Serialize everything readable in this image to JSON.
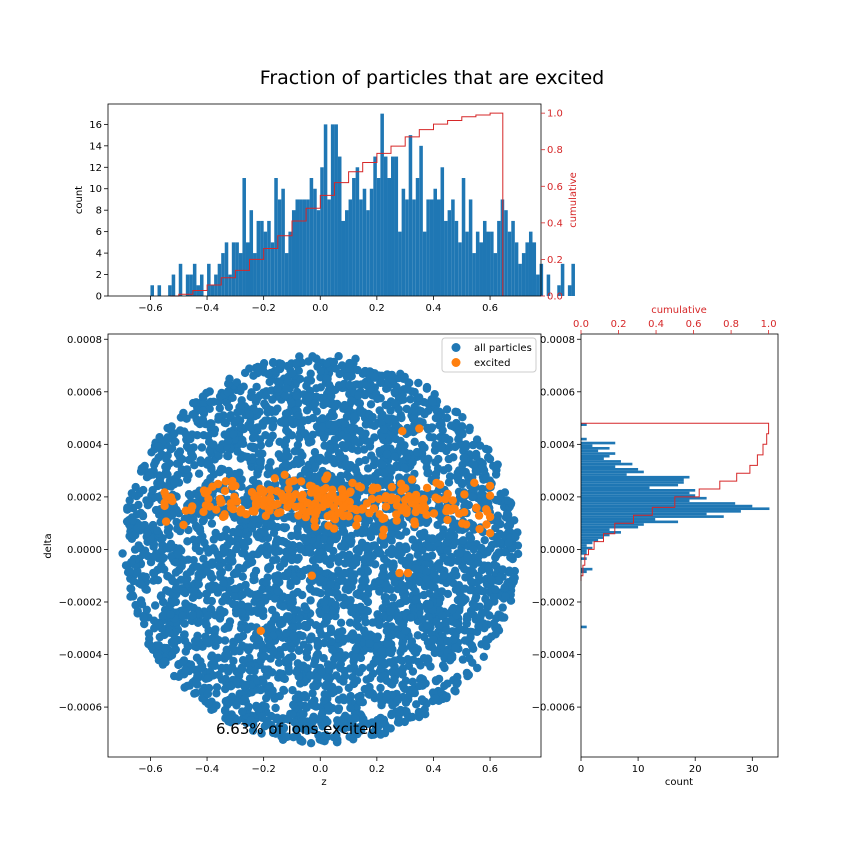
{
  "title": "Fraction of particles that are excited",
  "annotation": "6.63% of ions excited",
  "colors": {
    "all": "#1f77b4",
    "excited": "#ff7f0e",
    "cumulative": "#d62728",
    "axis": "#000000",
    "legend_border": "#cccccc"
  },
  "chart_data": [
    {
      "id": "top-histogram",
      "type": "bar",
      "xlabel": "",
      "ylabel": "count",
      "ylabel_right": "cumulative",
      "xlim": [
        -0.75,
        0.78
      ],
      "ylim": [
        0,
        17.9
      ],
      "ylim_right": [
        0,
        1.05
      ],
      "xticks": [
        -0.6,
        -0.4,
        -0.2,
        0.0,
        0.2,
        0.4,
        0.6
      ],
      "xtick_labels": [
        "−0.6",
        "−0.4",
        "−0.2",
        "0.0",
        "0.2",
        "0.4",
        "0.6"
      ],
      "yticks": [
        0,
        2,
        4,
        6,
        8,
        10,
        12,
        14,
        16
      ],
      "yticks_right": [
        0.0,
        0.2,
        0.4,
        0.6,
        0.8,
        1.0
      ],
      "ytick_labels_right": [
        "0.0",
        "0.2",
        "0.4",
        "0.6",
        "0.8",
        "1.0"
      ],
      "bin_start": -0.6,
      "bin_width": 0.0125,
      "counts": [
        1,
        0,
        1,
        0,
        0,
        1,
        2,
        0,
        3,
        0,
        2,
        2,
        3,
        1,
        2,
        0,
        3,
        1,
        2,
        3,
        4,
        5,
        2,
        5,
        5,
        4,
        11,
        5,
        8,
        4,
        7,
        7,
        6,
        7,
        5,
        11,
        9,
        10,
        4,
        6,
        8,
        9,
        9,
        9,
        9,
        11,
        10,
        8,
        12,
        16,
        9,
        16,
        16,
        13,
        7,
        8,
        9,
        11,
        12,
        9,
        10,
        8,
        10,
        13,
        11,
        17,
        13,
        11,
        13,
        13,
        6,
        10,
        9,
        15,
        9,
        11,
        14,
        6,
        9,
        9,
        10,
        9,
        12,
        7,
        8,
        9,
        7,
        5,
        11,
        6,
        9,
        4,
        6,
        5,
        7,
        6,
        6,
        4,
        7,
        9,
        8,
        6,
        7,
        5,
        3,
        4,
        5,
        6,
        5,
        2,
        3,
        0,
        2,
        0,
        0,
        1,
        3,
        0,
        1,
        3,
        0,
        0,
        0,
        0
      ],
      "cumulative": {
        "x": [
          -0.53,
          -0.5,
          -0.45,
          -0.4,
          -0.35,
          -0.3,
          -0.25,
          -0.2,
          -0.15,
          -0.1,
          -0.05,
          0.0,
          0.05,
          0.1,
          0.15,
          0.2,
          0.25,
          0.3,
          0.35,
          0.4,
          0.45,
          0.5,
          0.55,
          0.6,
          0.645
        ],
        "y": [
          0.0,
          0.01,
          0.03,
          0.06,
          0.1,
          0.14,
          0.2,
          0.26,
          0.33,
          0.41,
          0.48,
          0.55,
          0.62,
          0.68,
          0.73,
          0.78,
          0.82,
          0.87,
          0.91,
          0.94,
          0.96,
          0.98,
          0.99,
          1.0,
          1.0
        ]
      }
    },
    {
      "id": "main-scatter",
      "type": "scatter",
      "xlabel": "z",
      "ylabel": "delta",
      "xlim": [
        -0.75,
        0.78
      ],
      "ylim": [
        -0.00079,
        0.00082
      ],
      "xticks": [
        -0.6,
        -0.4,
        -0.2,
        0.0,
        0.2,
        0.4,
        0.6
      ],
      "xtick_labels": [
        "−0.6",
        "−0.4",
        "−0.2",
        "0.0",
        "0.2",
        "0.4",
        "0.6"
      ],
      "yticks": [
        -0.0006,
        -0.0004,
        -0.0002,
        0.0,
        0.0002,
        0.0004,
        0.0006,
        0.0008
      ],
      "ytick_labels": [
        "−0.0006",
        "−0.0004",
        "−0.0002",
        "0.0000",
        "0.0002",
        "0.0004",
        "0.0006",
        "0.0008"
      ],
      "legend_position": "upper right",
      "series": [
        {
          "name": "all particles",
          "count": 3800,
          "z_radius": 0.7,
          "delta_radius": 0.00074
        },
        {
          "name": "excited",
          "count": 252,
          "z_range": [
            -0.55,
            0.6
          ],
          "delta_range": [
            -1e-05,
            0.0004
          ]
        }
      ]
    },
    {
      "id": "right-histogram",
      "type": "bar",
      "orientation": "horizontal",
      "xlabel": "count",
      "xlabel_top": "cumulative",
      "xlim": [
        0,
        34.5
      ],
      "xlim_top": [
        0,
        1.05
      ],
      "ylim": [
        -0.00079,
        0.00082
      ],
      "xticks": [
        0,
        10,
        20,
        30
      ],
      "xticks_top": [
        0.0,
        0.2,
        0.4,
        0.6,
        0.8,
        1.0
      ],
      "xtick_labels_top": [
        "0.0",
        "0.2",
        "0.4",
        "0.6",
        "0.8",
        "1.0"
      ],
      "yticks": [
        -0.0006,
        -0.0004,
        -0.0002,
        0.0,
        0.0002,
        0.0004,
        0.0006,
        0.0008
      ],
      "ytick_labels": [
        "−0.0006",
        "−0.0004",
        "−0.0002",
        "0.0000",
        "0.0002",
        "0.0004",
        "0.0006",
        "0.0008"
      ],
      "bins": [
        {
          "delta": 0.00047,
          "count": 1
        },
        {
          "delta": 0.000415,
          "count": 1
        },
        {
          "delta": 0.0004,
          "count": 6
        },
        {
          "delta": 0.00039,
          "count": 2
        },
        {
          "delta": 0.00038,
          "count": 5
        },
        {
          "delta": 0.00037,
          "count": 3
        },
        {
          "delta": 0.00036,
          "count": 6
        },
        {
          "delta": 0.00035,
          "count": 5
        },
        {
          "delta": 0.00034,
          "count": 4
        },
        {
          "delta": 0.00033,
          "count": 7
        },
        {
          "delta": 0.00032,
          "count": 9
        },
        {
          "delta": 0.00031,
          "count": 6
        },
        {
          "delta": 0.0003,
          "count": 10
        },
        {
          "delta": 0.00029,
          "count": 11
        },
        {
          "delta": 0.00028,
          "count": 8
        },
        {
          "delta": 0.00027,
          "count": 19
        },
        {
          "delta": 0.00026,
          "count": 18
        },
        {
          "delta": 0.00025,
          "count": 18
        },
        {
          "delta": 0.00024,
          "count": 17
        },
        {
          "delta": 0.00023,
          "count": 12
        },
        {
          "delta": 0.00022,
          "count": 20
        },
        {
          "delta": 0.00021,
          "count": 19
        },
        {
          "delta": 0.0002,
          "count": 20
        },
        {
          "delta": 0.00019,
          "count": 22
        },
        {
          "delta": 0.00018,
          "count": 19
        },
        {
          "delta": 0.00017,
          "count": 27
        },
        {
          "delta": 0.00016,
          "count": 30
        },
        {
          "delta": 0.00015,
          "count": 33
        },
        {
          "delta": 0.00014,
          "count": 28
        },
        {
          "delta": 0.00013,
          "count": 22
        },
        {
          "delta": 0.00012,
          "count": 25
        },
        {
          "delta": 0.00011,
          "count": 13
        },
        {
          "delta": 0.0001,
          "count": 17
        },
        {
          "delta": 9e-05,
          "count": 11
        },
        {
          "delta": 8e-05,
          "count": 10
        },
        {
          "delta": 7e-05,
          "count": 5
        },
        {
          "delta": 6e-05,
          "count": 7
        },
        {
          "delta": 5e-05,
          "count": 5
        },
        {
          "delta": 4e-05,
          "count": 4
        },
        {
          "delta": 3e-05,
          "count": 3
        },
        {
          "delta": 2e-05,
          "count": 2
        },
        {
          "delta": 1e-05,
          "count": 1
        },
        {
          "delta": 0.0,
          "count": 2
        },
        {
          "delta": -1e-05,
          "count": 1
        },
        {
          "delta": -2e-05,
          "count": 1
        },
        {
          "delta": -4e-05,
          "count": 1
        },
        {
          "delta": -8e-05,
          "count": 2
        },
        {
          "delta": -9e-05,
          "count": 1
        },
        {
          "delta": -0.0003,
          "count": 1
        }
      ],
      "cumulative": {
        "y": [
          -0.00012,
          -0.0001,
          -6e-05,
          -2e-05,
          0.0,
          3e-05,
          6e-05,
          0.0001,
          0.00013,
          0.00016,
          0.0002,
          0.00023,
          0.00026,
          0.00029,
          0.00032,
          0.00036,
          0.0004,
          0.00044,
          0.00048
        ],
        "x": [
          0.0,
          0.01,
          0.02,
          0.04,
          0.07,
          0.12,
          0.18,
          0.28,
          0.38,
          0.5,
          0.63,
          0.74,
          0.83,
          0.9,
          0.94,
          0.97,
          0.99,
          1.0,
          1.0
        ]
      }
    }
  ]
}
